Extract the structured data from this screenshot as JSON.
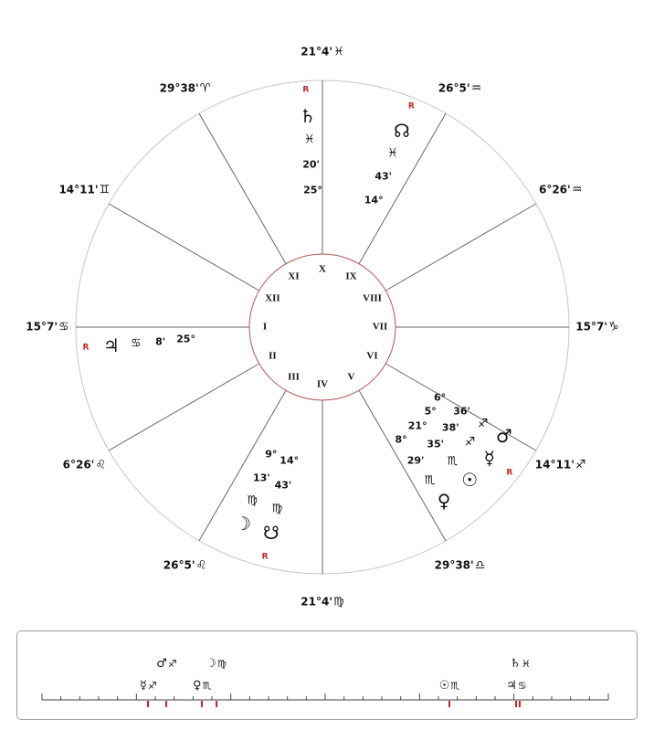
{
  "wheel": {
    "retro_label": "R",
    "cusps": [
      {
        "house": "I",
        "label": "15°7'",
        "sign": "♋",
        "angle": 180
      },
      {
        "house": "II",
        "label": "6°26'",
        "sign": "♌",
        "angle": 210
      },
      {
        "house": "III",
        "label": "26°5'",
        "sign": "♌",
        "angle": 240
      },
      {
        "house": "IV",
        "label": "21°4'",
        "sign": "♍",
        "angle": 270
      },
      {
        "house": "V",
        "label": "29°38'",
        "sign": "♎",
        "angle": 300
      },
      {
        "house": "VI",
        "label": "14°11'",
        "sign": "♐",
        "angle": 330
      },
      {
        "house": "VII",
        "label": "15°7'",
        "sign": "♑",
        "angle": 0
      },
      {
        "house": "VIII",
        "label": "6°26'",
        "sign": "♒",
        "angle": 30
      },
      {
        "house": "IX",
        "label": "26°5'",
        "sign": "♒",
        "angle": 60
      },
      {
        "house": "X",
        "label": "21°4'",
        "sign": "♓",
        "angle": 90
      },
      {
        "house": "XI",
        "label": "29°38'",
        "sign": "♈",
        "angle": 120
      },
      {
        "house": "XII",
        "label": "14°11'",
        "sign": "♊",
        "angle": 150
      }
    ],
    "planets": [
      {
        "name": "saturn",
        "glyph": "♄",
        "deg": "25°",
        "min": "20'",
        "sign": "♓",
        "retro": true,
        "angle": 94
      },
      {
        "name": "north-node",
        "glyph": "☊",
        "deg": "14°",
        "min": "43'",
        "sign": "♓",
        "retro": true,
        "angle": 68
      },
      {
        "name": "jupiter",
        "glyph": "♃",
        "deg": "25°",
        "min": "8'",
        "sign": "♋",
        "retro": true,
        "angle": 185
      },
      {
        "name": "moon",
        "glyph": "☽",
        "deg": "9°",
        "min": "13'",
        "sign": "♍",
        "retro": false,
        "angle": 248
      },
      {
        "name": "south-node",
        "glyph": "☋",
        "deg": "14°",
        "min": "43'",
        "sign": "♍",
        "retro": true,
        "angle": 256
      },
      {
        "name": "venus",
        "glyph": "♀",
        "deg": "8°",
        "min": "29'",
        "sign": "♏",
        "retro": false,
        "angle": 305
      },
      {
        "name": "sun",
        "glyph": "☉",
        "deg": "21°",
        "min": "35'",
        "sign": "♏",
        "retro": false,
        "angle": 314
      },
      {
        "name": "mercury",
        "glyph": "☿",
        "deg": "5°",
        "min": "38'",
        "sign": "♐",
        "retro": true,
        "angle": 322
      },
      {
        "name": "mars",
        "glyph": "♂",
        "deg": "6°",
        "min": "36'",
        "sign": "♐",
        "retro": false,
        "angle": 329
      }
    ]
  },
  "ruler": {
    "min": 0,
    "max": 30,
    "tick_step": 1,
    "major_step": 5,
    "planets": [
      {
        "name": "mercury",
        "glyph": "☿",
        "sign": "♐",
        "deg": 5.63,
        "row": "low"
      },
      {
        "name": "mars",
        "glyph": "♂",
        "sign": "♐",
        "deg": 6.6,
        "row": "high"
      },
      {
        "name": "venus",
        "glyph": "♀",
        "sign": "♏",
        "deg": 8.48,
        "row": "low"
      },
      {
        "name": "moon",
        "glyph": "☽",
        "sign": "♍",
        "deg": 9.22,
        "row": "high"
      },
      {
        "name": "sun",
        "glyph": "☉",
        "sign": "♏",
        "deg": 21.58,
        "row": "low"
      },
      {
        "name": "jupiter",
        "glyph": "♃",
        "sign": "♋",
        "deg": 25.13,
        "row": "low"
      },
      {
        "name": "saturn",
        "glyph": "♄",
        "sign": "♓",
        "deg": 25.33,
        "row": "high"
      }
    ]
  },
  "colors": {
    "retro": "#cc2222",
    "marker": "#cc2222",
    "inner_circle": "#b25555",
    "outer_circle": "#c6c6c6",
    "spoke": "#666666",
    "text": "#111111"
  }
}
